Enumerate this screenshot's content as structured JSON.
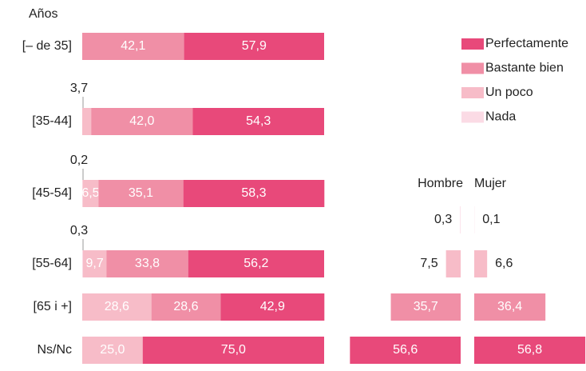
{
  "chart_data": [
    {
      "type": "stacked_barh",
      "title": "Años",
      "categories": [
        "[– de 35]",
        "[35-44]",
        "[45-54]",
        "[55-64]",
        "[65 i +]",
        "Ns/Nc"
      ],
      "series": [
        {
          "name": "Nada",
          "color": "#fbdbe5",
          "values": [
            null,
            null,
            0.2,
            0.3,
            null,
            null
          ],
          "value_labels": [
            null,
            null,
            "0,2",
            "0,3",
            null,
            null
          ]
        },
        {
          "name": "Un poco",
          "color": "#f7bcc8",
          "values": [
            null,
            3.7,
            6.5,
            9.7,
            28.6,
            25.0
          ],
          "value_labels": [
            null,
            "3,7",
            "6,5",
            "9,7",
            "28,6",
            "25,0"
          ]
        },
        {
          "name": "Bastante bien",
          "color": "#f08fa6",
          "values": [
            42.1,
            42.0,
            35.1,
            33.8,
            28.6,
            null
          ],
          "value_labels": [
            "42,1",
            "42,0",
            "35,1",
            "33,8",
            "28,6",
            null
          ]
        },
        {
          "name": "Perfectamente",
          "color": "#e8497a",
          "values": [
            57.9,
            54.3,
            58.3,
            56.2,
            42.9,
            75.0
          ],
          "value_labels": [
            "57,9",
            "54,3",
            "58,3",
            "56,2",
            "42,9",
            "75,0"
          ]
        }
      ]
    },
    {
      "type": "mirrored_barh",
      "row_colors": [
        "#fbdbe5",
        "#f7bcc8",
        "#f08fa6",
        "#e8497a"
      ],
      "series": [
        {
          "name": "Hombre",
          "values": [
            0.3,
            7.5,
            35.7,
            56.6
          ],
          "value_labels": [
            "0,3",
            "7,5",
            "35,7",
            "56,6"
          ]
        },
        {
          "name": "Mujer",
          "values": [
            0.1,
            6.6,
            36.4,
            56.8
          ],
          "value_labels": [
            "0,1",
            "6,6",
            "36,4",
            "56,8"
          ]
        }
      ]
    }
  ]
}
